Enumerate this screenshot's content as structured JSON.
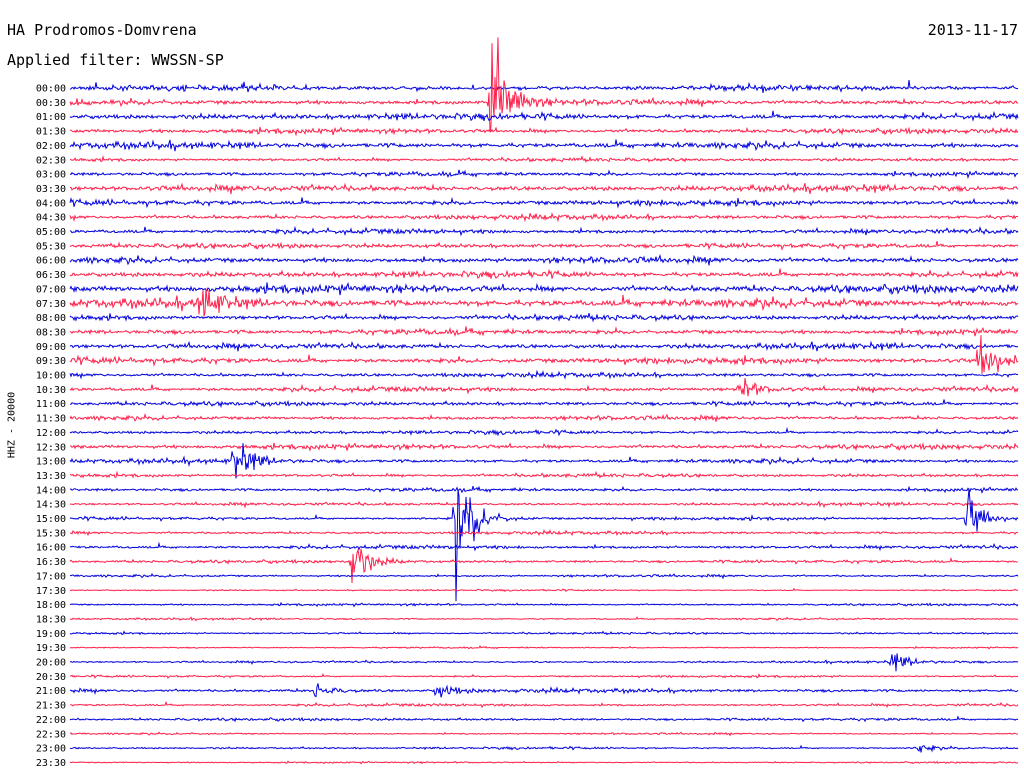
{
  "header": {
    "station": "HA Prodromos-Domvrena",
    "date": "2013-11-17",
    "filter": "Applied filter: WWSSN-SP"
  },
  "channel_label": "HHZ - 20000",
  "chart_data": {
    "type": "line",
    "title": "HA Prodromos-Domvrena",
    "subtitle": "Applied filter: WWSSN-SP",
    "ylabel": "HHZ - 20000",
    "xlim_minutes": [
      0,
      30
    ],
    "grid": false,
    "colors": {
      "even": "#0000dd",
      "odd": "#ff1f4a"
    },
    "rows": [
      "00:00",
      "00:30",
      "01:00",
      "01:30",
      "02:00",
      "02:30",
      "03:00",
      "03:30",
      "04:00",
      "04:30",
      "05:00",
      "05:30",
      "06:00",
      "06:30",
      "07:00",
      "07:30",
      "08:00",
      "08:30",
      "09:00",
      "09:30",
      "10:00",
      "10:30",
      "11:00",
      "11:30",
      "12:00",
      "12:30",
      "13:00",
      "13:30",
      "14:00",
      "14:30",
      "15:00",
      "15:30",
      "16:00",
      "16:30",
      "17:00",
      "17:30",
      "18:00",
      "18:30",
      "19:00",
      "19:30",
      "20:00",
      "20:30",
      "21:00",
      "21:30",
      "22:00",
      "22:30",
      "23:00",
      "23:30"
    ],
    "noise": [
      0.9,
      0.9,
      1.0,
      0.8,
      1.0,
      0.6,
      0.7,
      1.0,
      0.9,
      0.8,
      0.8,
      0.8,
      1.0,
      1.0,
      1.3,
      1.4,
      0.9,
      0.9,
      0.9,
      1.0,
      0.7,
      0.8,
      0.7,
      0.7,
      0.6,
      0.8,
      0.7,
      0.6,
      0.6,
      0.5,
      0.5,
      0.5,
      0.6,
      0.5,
      0.4,
      0.25,
      0.35,
      0.3,
      0.35,
      0.25,
      0.35,
      0.35,
      0.6,
      0.45,
      0.45,
      0.3,
      0.35,
      0.25
    ],
    "events": [
      {
        "row": 1,
        "minute": 13.3,
        "amplitude": 50
      },
      {
        "row": 15,
        "minute": 4.1,
        "amplitude": 12
      },
      {
        "row": 19,
        "minute": 28.8,
        "amplitude": 18
      },
      {
        "row": 21,
        "minute": 21.2,
        "amplitude": 8
      },
      {
        "row": 26,
        "minute": 5.2,
        "amplitude": 14
      },
      {
        "row": 30,
        "minute": 12.2,
        "amplitude": 40
      },
      {
        "row": 30,
        "minute": 28.4,
        "amplitude": 14
      },
      {
        "row": 33,
        "minute": 8.9,
        "amplitude": 14
      },
      {
        "row": 40,
        "minute": 26.0,
        "amplitude": 6
      },
      {
        "row": 42,
        "minute": 7.7,
        "amplitude": 5
      },
      {
        "row": 42,
        "minute": 11.6,
        "amplitude": 5
      },
      {
        "row": 46,
        "minute": 26.8,
        "amplitude": 3
      }
    ]
  }
}
